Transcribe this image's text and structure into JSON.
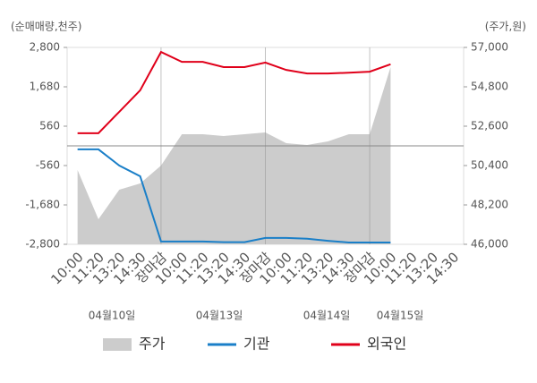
{
  "chart_data": {
    "type": "line",
    "y_label": "(순매매량,천주)",
    "y2_label": "(주가,원)",
    "categories": [
      "10:00",
      "11:20",
      "13:20",
      "14:30",
      "장마감",
      "10:00",
      "11:20",
      "13:20",
      "14:30",
      "장마감",
      "10:00",
      "11:20",
      "13:20",
      "14:30",
      "장마감",
      "10:00",
      "11:20",
      "13:20",
      "14:30"
    ],
    "category_colors": [
      "#555",
      "#555",
      "#555",
      "#555",
      "#e0001a",
      "#555",
      "#555",
      "#555",
      "#555",
      "#e0001a",
      "#555",
      "#555",
      "#555",
      "#555",
      "#e0001a",
      "#555",
      "#555",
      "#555",
      "#555"
    ],
    "dates": [
      "04월10일",
      "04월13일",
      "04월14일",
      "04월15일"
    ],
    "series": [
      {
        "name": "주가",
        "type": "area",
        "axis": "y2",
        "color": "#cccccc",
        "values": [
          50150,
          47400,
          49050,
          49400,
          50400,
          52150,
          52150,
          52050,
          52150,
          52250,
          51650,
          51550,
          51750,
          52150,
          52150,
          55900,
          null,
          null,
          null
        ]
      },
      {
        "name": "기관",
        "type": "line",
        "color": "#1a7fc8",
        "values": [
          -100,
          -100,
          -560,
          -865,
          -2720,
          -2720,
          -2720,
          -2740,
          -2740,
          -2620,
          -2620,
          -2640,
          -2700,
          -2750,
          -2750,
          -2750,
          null,
          null,
          null
        ]
      },
      {
        "name": "외국인",
        "type": "line",
        "color": "#e0001a",
        "values": [
          360,
          360,
          970,
          1580,
          2670,
          2390,
          2390,
          2240,
          2240,
          2370,
          2160,
          2060,
          2060,
          2080,
          2110,
          2320,
          null,
          null,
          null
        ]
      }
    ],
    "ylim": [
      -2800,
      2800
    ],
    "yticks": [
      {
        "value": -2800,
        "label": "-2,800"
      },
      {
        "value": -1680,
        "label": "-1,680"
      },
      -560,
      560,
      {
        "value": 1680,
        "label": "1,680"
      },
      {
        "value": 2800,
        "label": "2,800"
      }
    ],
    "y2lim": [
      46000,
      57000
    ],
    "y2ticks": [
      {
        "value": 46000,
        "label": "46,000"
      },
      {
        "value": 48200,
        "label": "48,200"
      },
      {
        "value": 50400,
        "label": "50,400"
      },
      {
        "value": 52600,
        "label": "52,600"
      },
      {
        "value": 54800,
        "label": "54,800"
      },
      {
        "value": 57000,
        "label": "57,000"
      }
    ]
  }
}
